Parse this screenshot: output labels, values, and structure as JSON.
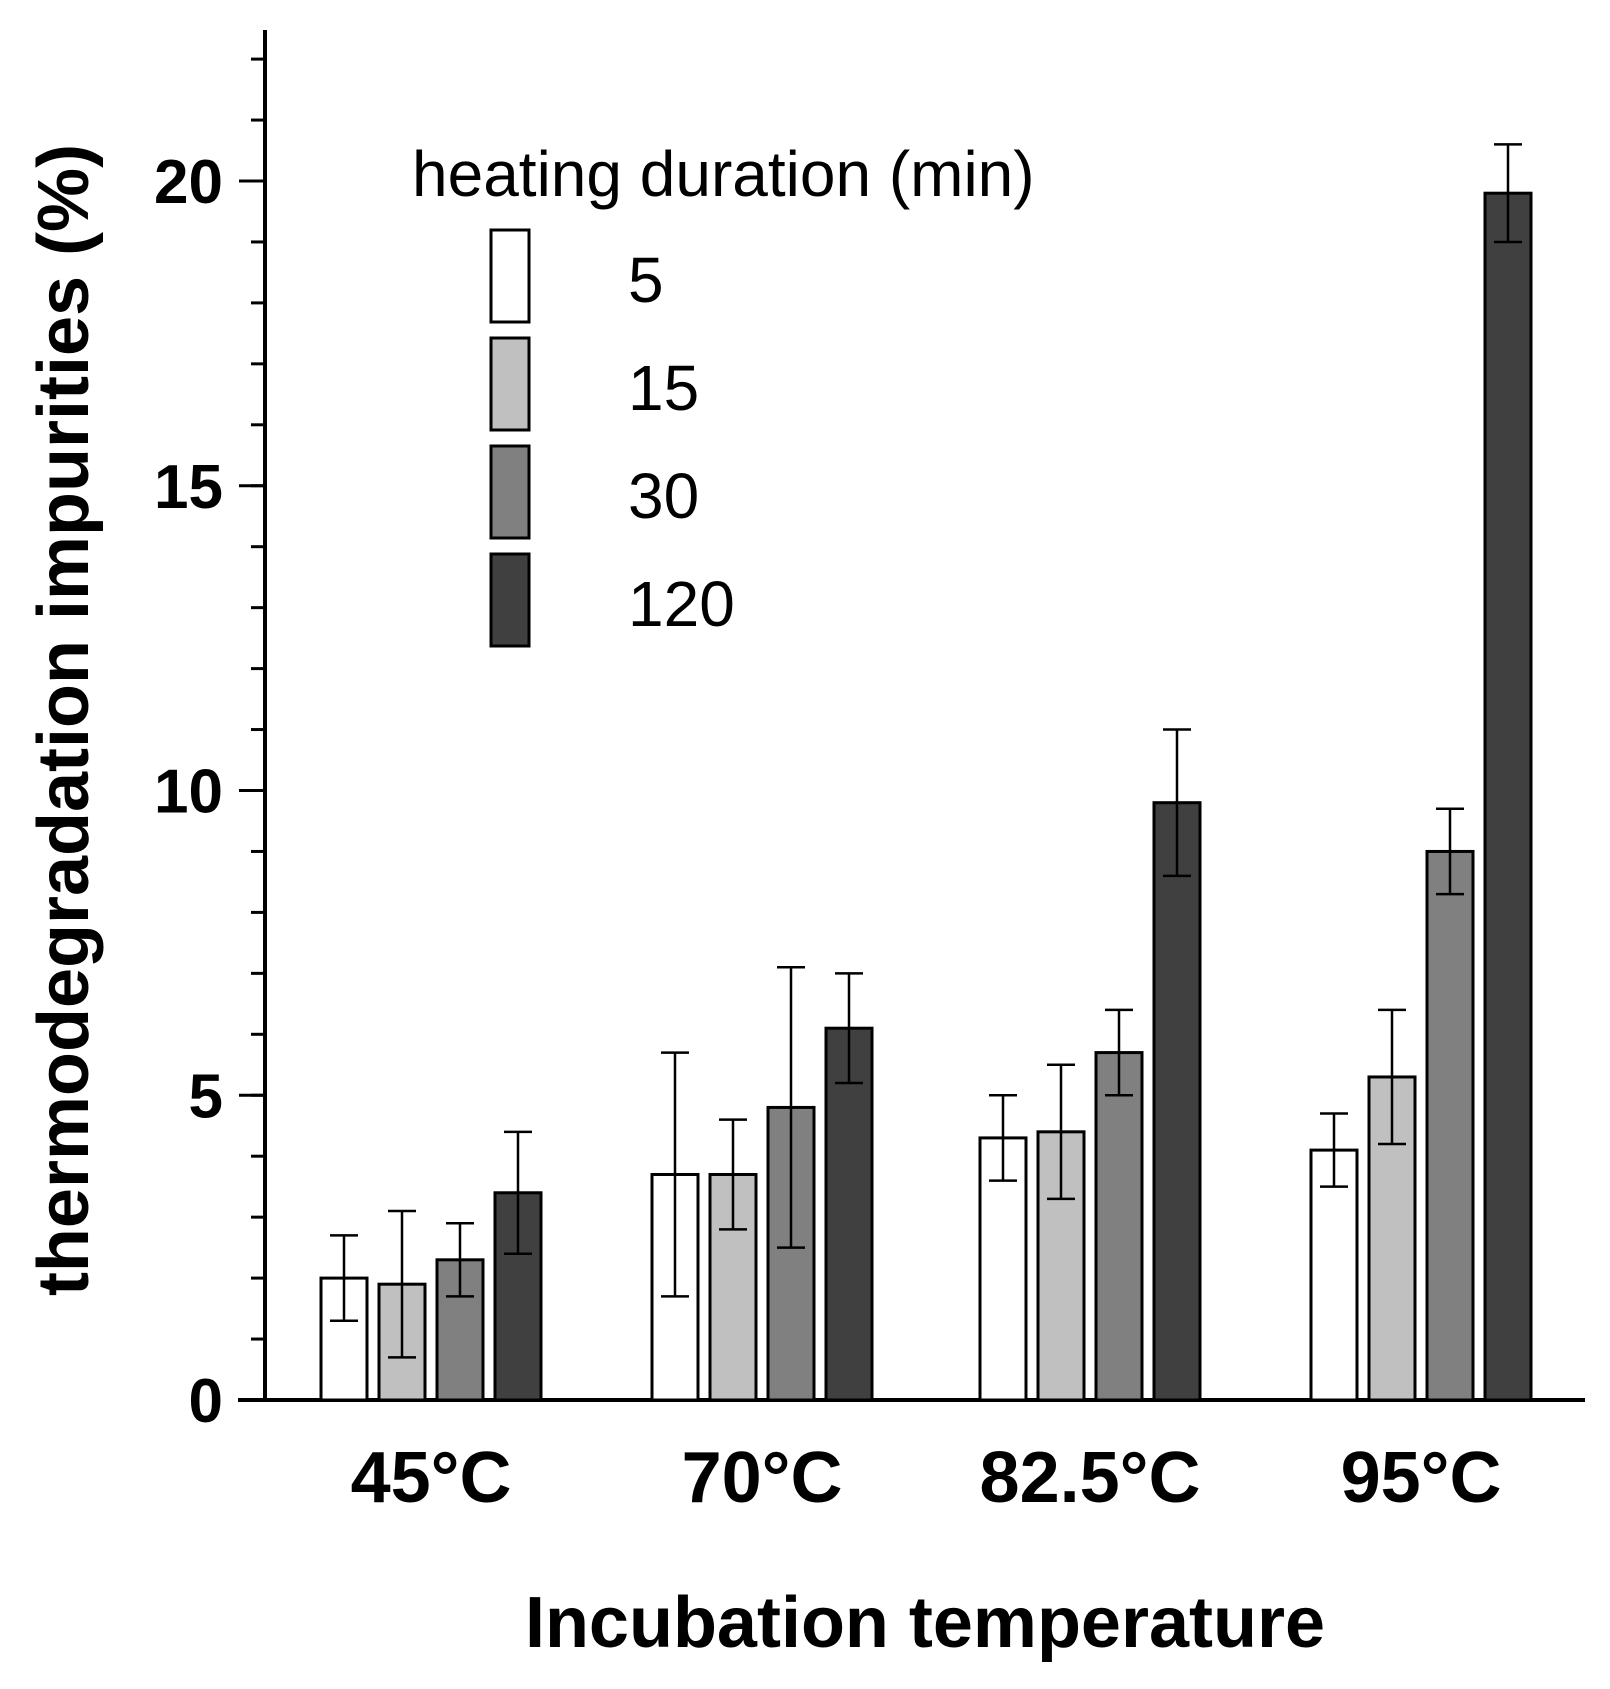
{
  "chart_data": {
    "type": "bar",
    "title": "",
    "xlabel": "Incubation temperature",
    "ylabel": "thermodegradation impurities (%)",
    "ylim": [
      0,
      22.5
    ],
    "yticks": [
      0,
      5,
      10,
      15,
      20
    ],
    "minor_tick_step": 1,
    "grid": false,
    "legend": {
      "title": "heating duration (min)",
      "placement": "top-left"
    },
    "categories": [
      "45°C",
      "70°C",
      "82.5°C",
      "95°C"
    ],
    "series": [
      {
        "name": "5",
        "color": "#ffffff",
        "values": [
          2.0,
          3.7,
          4.3,
          4.1
        ],
        "errors": [
          0.7,
          2.0,
          0.7,
          0.6
        ]
      },
      {
        "name": "15",
        "color": "#c0c0c0",
        "values": [
          1.9,
          3.7,
          4.4,
          5.3
        ],
        "errors": [
          1.2,
          0.9,
          1.1,
          1.1
        ]
      },
      {
        "name": "30",
        "color": "#808080",
        "values": [
          2.3,
          4.8,
          5.7,
          9.0
        ],
        "errors": [
          0.6,
          2.3,
          0.7,
          0.7
        ]
      },
      {
        "name": "120",
        "color": "#404040",
        "values": [
          3.4,
          6.1,
          9.8,
          19.8
        ],
        "errors": [
          1.0,
          0.9,
          1.2,
          0.8
        ]
      }
    ]
  }
}
